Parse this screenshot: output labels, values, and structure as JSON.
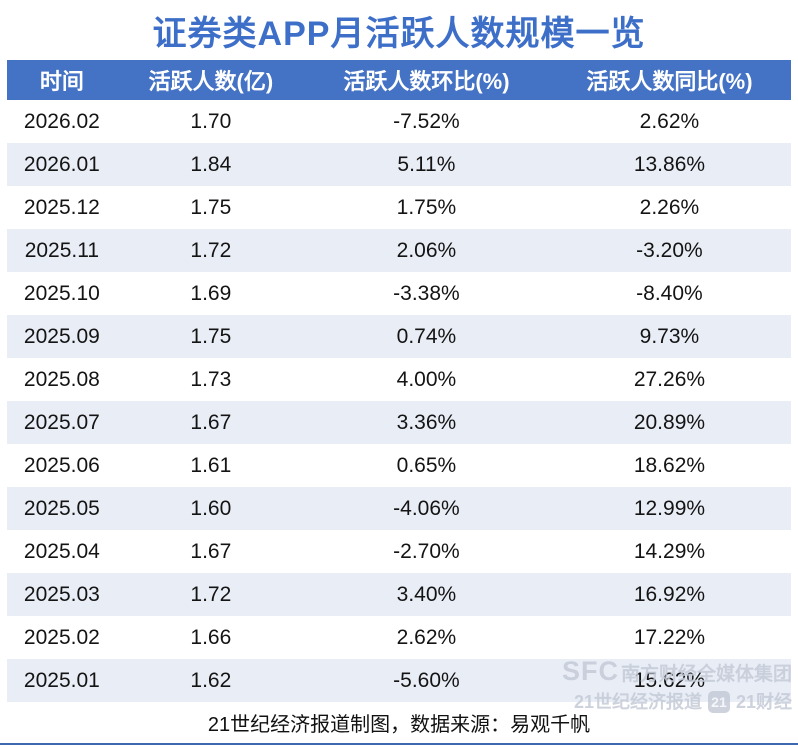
{
  "title": "证券类APP月活跃人数规模一览",
  "chart_data": {
    "type": "table",
    "title": "证券类APP月活跃人数规模一览",
    "columns": [
      "时间",
      "活跃人数(亿)",
      "活跃人数环比(%)",
      "活跃人数同比(%)"
    ],
    "rows": [
      [
        "2026.02",
        "1.70",
        "-7.52%",
        "2.62%"
      ],
      [
        "2026.01",
        "1.84",
        "5.11%",
        "13.86%"
      ],
      [
        "2025.12",
        "1.75",
        "1.75%",
        "2.26%"
      ],
      [
        "2025.11",
        "1.72",
        "2.06%",
        "-3.20%"
      ],
      [
        "2025.10",
        "1.69",
        "-3.38%",
        "-8.40%"
      ],
      [
        "2025.09",
        "1.75",
        "0.74%",
        "9.73%"
      ],
      [
        "2025.08",
        "1.73",
        "4.00%",
        "27.26%"
      ],
      [
        "2025.07",
        "1.67",
        "3.36%",
        "20.89%"
      ],
      [
        "2025.06",
        "1.61",
        "0.65%",
        "18.62%"
      ],
      [
        "2025.05",
        "1.60",
        "-4.06%",
        "12.99%"
      ],
      [
        "2025.04",
        "1.67",
        "-2.70%",
        "14.29%"
      ],
      [
        "2025.03",
        "1.72",
        "3.40%",
        "16.92%"
      ],
      [
        "2025.02",
        "1.66",
        "2.62%",
        "17.22%"
      ],
      [
        "2025.01",
        "1.62",
        "-5.60%",
        "15.62%"
      ]
    ],
    "note": "21世纪经济报道制图，数据来源：易观千帆",
    "layout_hints": {
      "header_bg": "#4472c4",
      "stripe_bg": "#e9edf6",
      "title_color": "#3d6fc9",
      "bottom_rule_color": "#3e68b0"
    }
  },
  "footer": {
    "note": "21世纪经济报道制图，数据来源：易观千帆"
  },
  "watermark": {
    "sfc": "SFC",
    "group": "南方财经全媒体集团",
    "brand1": "21世纪经济报道",
    "badge": "21",
    "brand2": "21财经"
  }
}
